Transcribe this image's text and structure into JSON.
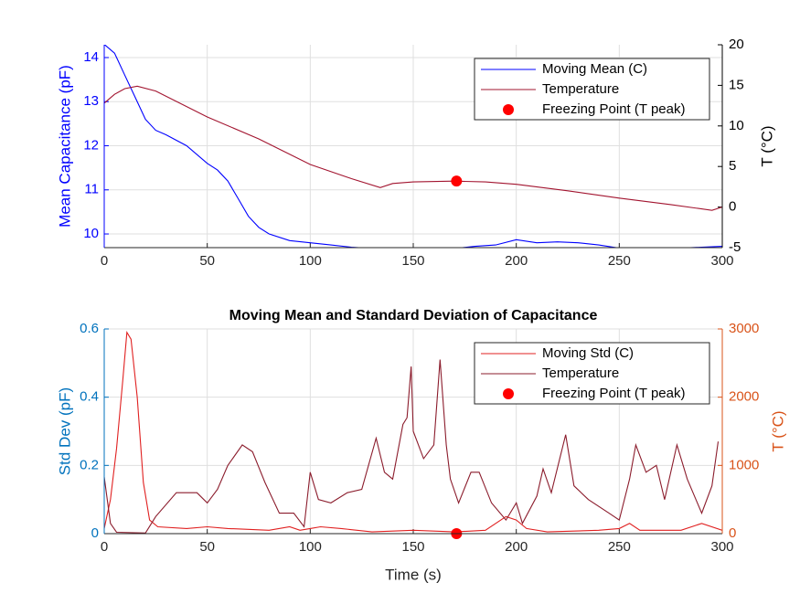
{
  "chart_data": [
    {
      "type": "line",
      "xlim": [
        0,
        300
      ],
      "xticks": [
        0,
        50,
        100,
        150,
        200,
        250,
        300
      ],
      "ylabel": "Mean Capacitance (pF)",
      "ylim": [
        9.69,
        14.29
      ],
      "yticks": [
        10,
        11,
        12,
        13,
        14
      ],
      "ycolor": "#0000ff",
      "y2label": "T (°C)",
      "y2lim": [
        -5,
        20
      ],
      "y2ticks": [
        -5,
        0,
        5,
        10,
        15,
        20
      ],
      "y2color": "#000000",
      "grid": true,
      "legend": "upper right",
      "series": [
        {
          "name": "Moving Mean (C)",
          "color": "#0000ff",
          "x": [
            0,
            5,
            10,
            15,
            20,
            25,
            30,
            40,
            50,
            55,
            60,
            65,
            70,
            75,
            80,
            90,
            100,
            110,
            120,
            130,
            150,
            170,
            180,
            190,
            200,
            210,
            220,
            230,
            240,
            250,
            260,
            280,
            290,
            300
          ],
          "values": [
            14.3,
            14.1,
            13.6,
            13.1,
            12.6,
            12.35,
            12.25,
            12.0,
            11.6,
            11.45,
            11.2,
            10.8,
            10.4,
            10.15,
            10.0,
            9.85,
            9.8,
            9.75,
            9.7,
            9.67,
            9.68,
            9.67,
            9.72,
            9.75,
            9.87,
            9.8,
            9.82,
            9.8,
            9.75,
            9.68,
            9.67,
            9.68,
            9.7,
            9.72
          ]
        },
        {
          "name": "Temperature",
          "color": "#a2142f",
          "axis": "y2",
          "x": [
            0,
            5,
            10,
            16,
            25,
            50,
            75,
            100,
            120,
            134,
            140,
            150,
            170,
            185,
            200,
            225,
            250,
            275,
            295,
            300
          ],
          "values": [
            12.8,
            13.9,
            14.6,
            14.9,
            14.3,
            11.1,
            8.4,
            5.25,
            3.5,
            2.4,
            2.9,
            3.1,
            3.2,
            3.1,
            2.8,
            2.0,
            1.1,
            0.3,
            -0.4,
            0
          ]
        },
        {
          "name": "Freezing Point (T peak)",
          "color": "#ff0000",
          "axis": "y2",
          "marker": "dot",
          "x": [
            171
          ],
          "values": [
            3.2
          ]
        }
      ]
    },
    {
      "type": "line",
      "title": "Moving Mean and Standard Deviation of Capacitance",
      "xlabel": "Time (s)",
      "xlim": [
        0,
        300
      ],
      "xticks": [
        0,
        50,
        100,
        150,
        200,
        250,
        300
      ],
      "ylabel": "Std Dev (pF)",
      "ylim": [
        0,
        0.6
      ],
      "yticks": [
        0,
        0.2,
        0.4,
        0.6
      ],
      "ycolor": "#0072bd",
      "y2label": "T (°C)",
      "y2lim": [
        0,
        3000
      ],
      "y2ticks": [
        0,
        1000,
        2000,
        3000
      ],
      "y2color": "#d95319",
      "grid": true,
      "legend": "upper right",
      "series": [
        {
          "name": "Moving Std (C)",
          "color": "#e02020",
          "x": [
            0,
            3,
            6,
            9,
            11,
            13,
            16,
            19,
            22,
            26,
            40,
            50,
            60,
            80,
            90,
            95,
            100,
            105,
            115,
            130,
            150,
            170,
            185,
            195,
            200,
            205,
            215,
            240,
            250,
            255,
            260,
            280,
            290,
            300
          ],
          "values": [
            0.015,
            0.1,
            0.25,
            0.45,
            0.59,
            0.57,
            0.4,
            0.15,
            0.04,
            0.02,
            0.015,
            0.02,
            0.015,
            0.01,
            0.02,
            0.01,
            0.015,
            0.02,
            0.015,
            0.005,
            0.01,
            0.005,
            0.01,
            0.05,
            0.04,
            0.015,
            0.005,
            0.01,
            0.015,
            0.03,
            0.01,
            0.01,
            0.03,
            0.01
          ]
        },
        {
          "name": "Temperature",
          "color": "#8b1c2c",
          "axis": "y2",
          "x": [
            0,
            3,
            6,
            20,
            25,
            35,
            45,
            50,
            55,
            60,
            67,
            72,
            78,
            85,
            92,
            97,
            100,
            104,
            110,
            118,
            125,
            132,
            136,
            140,
            145,
            147,
            149,
            150,
            155,
            160,
            163,
            166,
            168,
            172,
            178,
            182,
            188,
            195,
            200,
            203,
            210,
            213,
            217,
            224,
            228,
            235,
            245,
            250,
            255,
            258,
            263,
            268,
            272,
            278,
            283,
            290,
            295,
            298
          ],
          "values": [
            830,
            150,
            20,
            10,
            250,
            600,
            600,
            450,
            650,
            1000,
            1300,
            1200,
            750,
            300,
            300,
            100,
            900,
            500,
            450,
            600,
            650,
            1400,
            900,
            800,
            1600,
            1700,
            2450,
            1500,
            1100,
            1300,
            2550,
            1300,
            800,
            450,
            900,
            900,
            450,
            200,
            450,
            150,
            550,
            950,
            600,
            1450,
            700,
            500,
            300,
            200,
            800,
            1300,
            900,
            1000,
            500,
            1300,
            800,
            300,
            700,
            1350
          ]
        },
        {
          "name": "Freezing Point (T peak)",
          "color": "#ff0000",
          "axis": "y2",
          "marker": "dot",
          "x": [
            171
          ],
          "values": [
            0
          ]
        }
      ]
    }
  ]
}
